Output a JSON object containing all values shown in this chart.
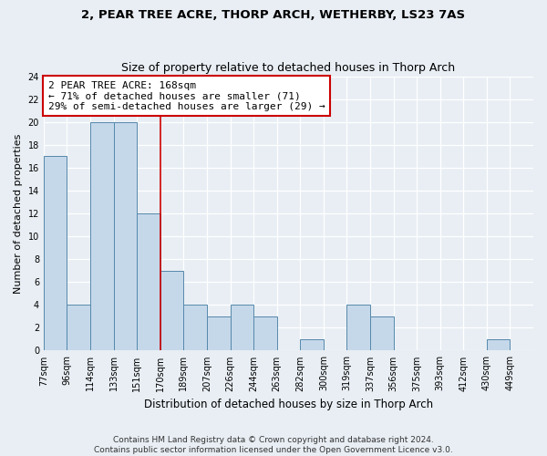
{
  "title": "2, PEAR TREE ACRE, THORP ARCH, WETHERBY, LS23 7AS",
  "subtitle": "Size of property relative to detached houses in Thorp Arch",
  "xlabel": "Distribution of detached houses by size in Thorp Arch",
  "ylabel": "Number of detached properties",
  "bin_labels": [
    "77sqm",
    "96sqm",
    "114sqm",
    "133sqm",
    "151sqm",
    "170sqm",
    "189sqm",
    "207sqm",
    "226sqm",
    "244sqm",
    "263sqm",
    "282sqm",
    "300sqm",
    "319sqm",
    "337sqm",
    "356sqm",
    "375sqm",
    "393sqm",
    "412sqm",
    "430sqm",
    "449sqm"
  ],
  "bar_values": [
    17,
    4,
    20,
    20,
    12,
    7,
    4,
    3,
    4,
    3,
    0,
    1,
    0,
    4,
    3,
    0,
    0,
    0,
    0,
    1,
    0
  ],
  "marker_bin_index": 5,
  "marker_color": "#cc0000",
  "annotation_line1": "2 PEAR TREE ACRE: 168sqm",
  "annotation_line2": "← 71% of detached houses are smaller (71)",
  "annotation_line3": "29% of semi-detached houses are larger (29) →",
  "ylim": [
    0,
    24
  ],
  "yticks": [
    0,
    2,
    4,
    6,
    8,
    10,
    12,
    14,
    16,
    18,
    20,
    22,
    24
  ],
  "footer_line1": "Contains HM Land Registry data © Crown copyright and database right 2024.",
  "footer_line2": "Contains public sector information licensed under the Open Government Licence v3.0.",
  "bg_color": "#e8eef4",
  "bar_fill_color": "#c5d8ea",
  "bar_edge_color": "#5588aa",
  "grid_color": "#ffffff",
  "annotation_box_facecolor": "#ffffff",
  "annotation_box_edgecolor": "#cc0000",
  "title_fontsize": 9.5,
  "subtitle_fontsize": 9,
  "ylabel_fontsize": 8,
  "xlabel_fontsize": 8.5,
  "tick_fontsize": 7,
  "annotation_fontsize": 8,
  "footer_fontsize": 6.5
}
